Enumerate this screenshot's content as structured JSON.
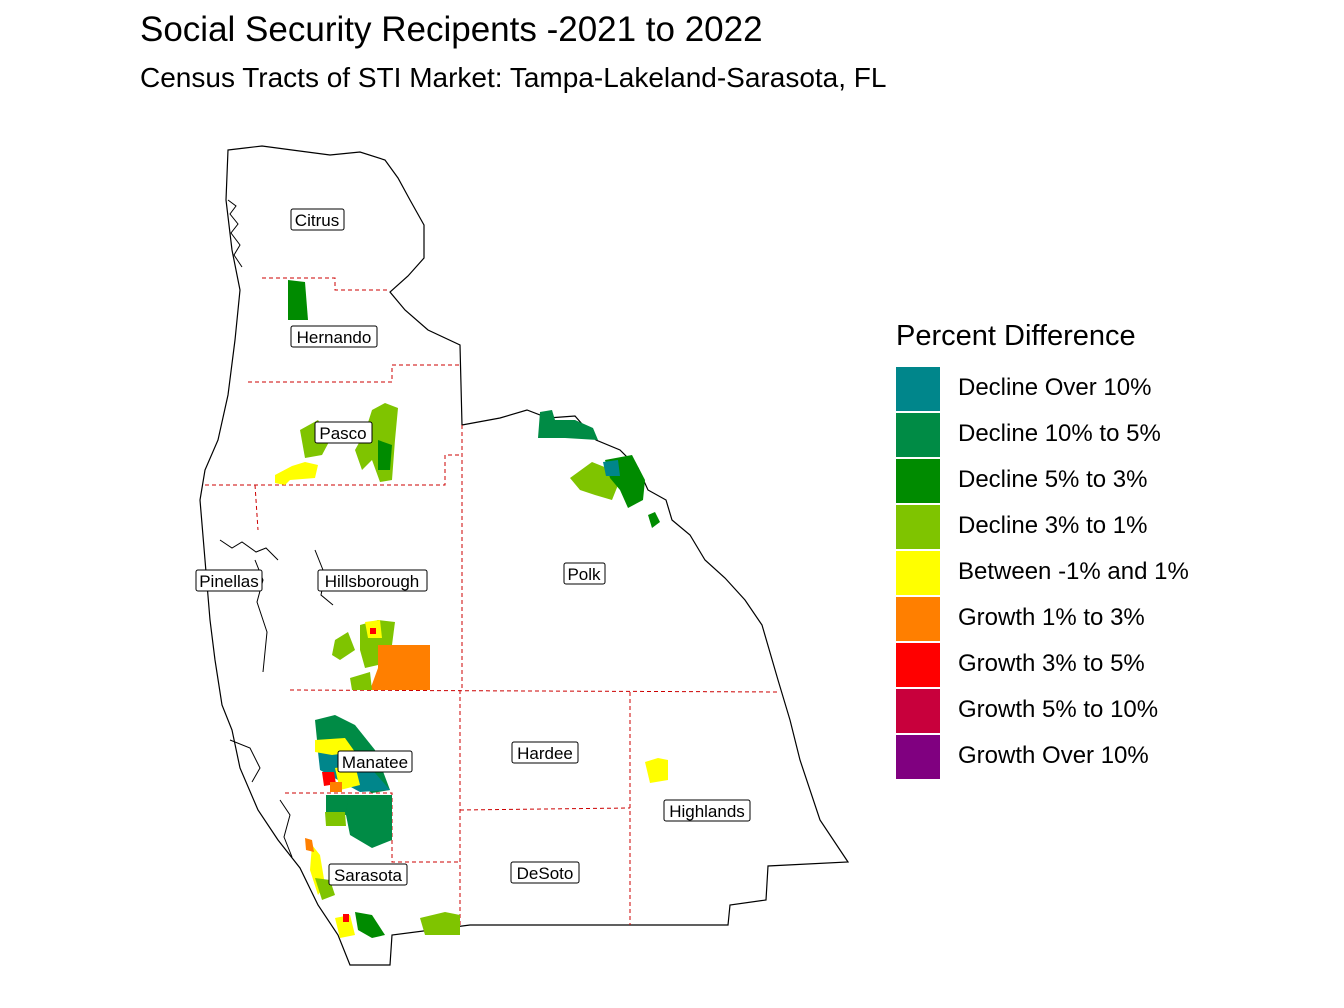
{
  "title": "Social Security Recipents -2021 to 2022",
  "subtitle": "Census Tracts of STI Market: Tampa-Lakeland-Sarasota, FL",
  "legend": {
    "title": "Percent Difference",
    "items": [
      {
        "label": "Decline Over 10%",
        "color": "#00868B"
      },
      {
        "label": "Decline 10% to 5%",
        "color": "#008B45"
      },
      {
        "label": "Decline 5% to 3%",
        "color": "#008B00"
      },
      {
        "label": "Decline 3% to 1%",
        "color": "#7FC400"
      },
      {
        "label": "Between -1% and 1%",
        "color": "#FFFF00"
      },
      {
        "label": "Growth 1% to 3%",
        "color": "#FF7F00"
      },
      {
        "label": "Growth 3% to 5%",
        "color": "#FF0000"
      },
      {
        "label": "Growth 5% to 10%",
        "color": "#C8003C"
      },
      {
        "label": "Growth Over 10%",
        "color": "#800080"
      }
    ]
  },
  "counties": [
    "Citrus",
    "Hernando",
    "Pasco",
    "Pinellas",
    "Hillsborough",
    "Polk",
    "Manatee",
    "Hardee",
    "Highlands",
    "Sarasota",
    "DeSoto"
  ],
  "boundary_colors": {
    "outline": "#000000",
    "county_line": "#CC0000"
  }
}
